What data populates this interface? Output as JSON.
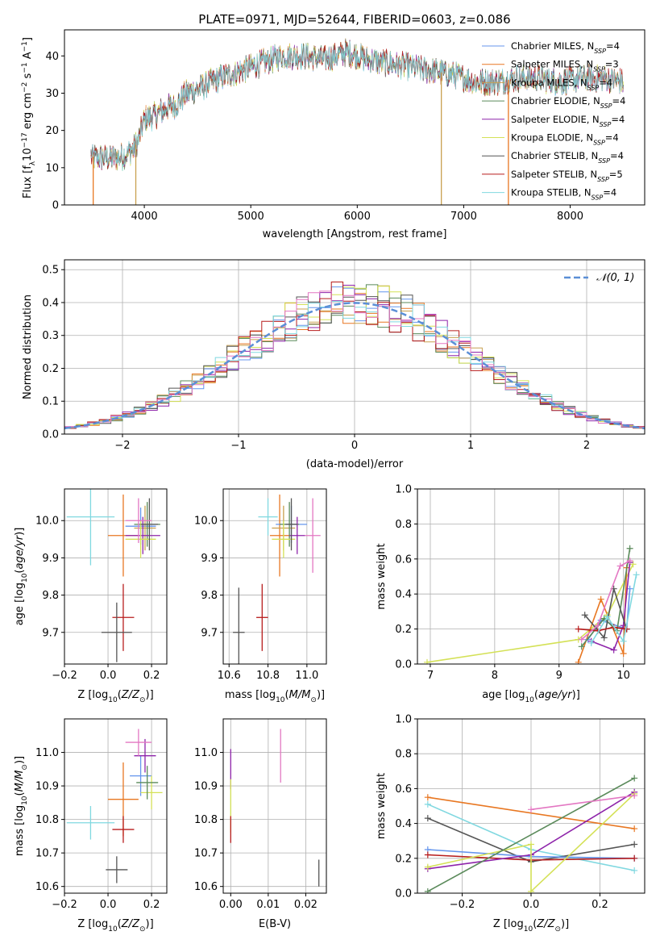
{
  "figure_title": "PLATE=0971, MJD=52644, FIBERID=0603, z=0.086",
  "colors": {
    "c1": "#6495ed",
    "c2": "#e87722",
    "c3": "#c8a050",
    "c4": "#5a8a5a",
    "c5": "#8e24aa",
    "c6": "#d4e157",
    "c7": "#555555",
    "c8": "#b71c1c",
    "c9": "#80d8e0",
    "pink": "#e377c2",
    "gauss": "#5b8fd6",
    "grid": "#b0b0b0"
  },
  "chart_data": [
    {
      "id": "spectrum",
      "type": "line",
      "xlabel": "wavelength [Angstrom, rest frame]",
      "ylabel": "Flux [f_λ10^-17 erg cm^-2 s^-1 A^-1]",
      "xlim": [
        3250,
        8700
      ],
      "ylim": [
        0,
        47
      ],
      "xticks": [
        4000,
        5000,
        6000,
        7000,
        8000
      ],
      "yticks": [
        0,
        10,
        20,
        30,
        40
      ],
      "grid": false,
      "legend_position": "upper-right",
      "continuum": [
        [
          3500,
          13
        ],
        [
          3650,
          12.5
        ],
        [
          3800,
          13
        ],
        [
          3900,
          15
        ],
        [
          3950,
          18
        ],
        [
          4000,
          23
        ],
        [
          4100,
          24
        ],
        [
          4200,
          26
        ],
        [
          4300,
          27
        ],
        [
          4400,
          30
        ],
        [
          4500,
          31
        ],
        [
          4700,
          34
        ],
        [
          4900,
          36
        ],
        [
          5100,
          38
        ],
        [
          5300,
          40
        ],
        [
          5500,
          40
        ],
        [
          5700,
          39
        ],
        [
          5900,
          41
        ],
        [
          6100,
          39
        ],
        [
          6300,
          38
        ],
        [
          6500,
          37
        ],
        [
          6700,
          36
        ],
        [
          6900,
          35
        ],
        [
          7100,
          33
        ],
        [
          7300,
          33
        ],
        [
          7500,
          34
        ],
        [
          7700,
          34
        ],
        [
          7900,
          33
        ],
        [
          8100,
          34
        ],
        [
          8300,
          34
        ],
        [
          8500,
          33
        ]
      ],
      "series": [
        {
          "name": "Chabrier MILES",
          "n_ssp": "4",
          "color": "c1"
        },
        {
          "name": "Salpeter MILES",
          "n_ssp": "3",
          "color": "c2"
        },
        {
          "name": "Kroupa MILES",
          "n_ssp": "4",
          "color": "c3"
        },
        {
          "name": "Chabrier ELODIE",
          "n_ssp": "4",
          "color": "c4"
        },
        {
          "name": "Salpeter ELODIE",
          "n_ssp": "4",
          "color": "c5"
        },
        {
          "name": "Kroupa ELODIE",
          "n_ssp": "4",
          "color": "c6"
        },
        {
          "name": "Chabrier STELIB",
          "n_ssp": "4",
          "color": "c7"
        },
        {
          "name": "Salpeter STELIB",
          "n_ssp": "5",
          "color": "c8"
        },
        {
          "name": "Kroupa STELIB",
          "n_ssp": "4",
          "color": "c9"
        }
      ]
    },
    {
      "id": "histogram",
      "type": "bar",
      "xlabel": "(data-model)/error",
      "ylabel": "Normed distribution",
      "xlim": [
        -2.5,
        2.5
      ],
      "ylim": [
        0,
        0.53
      ],
      "xticks": [
        -2,
        -1,
        0,
        1,
        2
      ],
      "yticks": [
        0.0,
        0.1,
        0.2,
        0.3,
        0.4,
        0.5
      ],
      "grid": true,
      "legend_position": "upper-right",
      "legend_label": "𝒩(0, 1)",
      "bin_width": 0.1
    },
    {
      "id": "age_vs_z",
      "type": "scatter",
      "xlabel": "Z [log10(Z/Z⊙)]",
      "ylabel": "age  [log10(age/yr)]",
      "xlim": [
        -0.2,
        0.27
      ],
      "ylim": [
        9.615,
        10.085
      ],
      "xticks": [
        -0.2,
        0.0,
        0.2
      ],
      "yticks": [
        9.7,
        9.8,
        9.9,
        10.0
      ],
      "grid": true,
      "points": [
        {
          "x": 0.07,
          "y": 9.96,
          "xerr": 0.07,
          "yerr": 0.11,
          "color": "c2"
        },
        {
          "x": 0.15,
          "y": 9.985,
          "xerr": 0.07,
          "yerr": 0.05,
          "color": "c1"
        },
        {
          "x": 0.17,
          "y": 9.98,
          "xerr": 0.05,
          "yerr": 0.06,
          "color": "c3"
        },
        {
          "x": 0.18,
          "y": 9.99,
          "xerr": 0.06,
          "yerr": 0.06,
          "color": "c4"
        },
        {
          "x": 0.16,
          "y": 9.96,
          "xerr": 0.08,
          "yerr": 0.05,
          "color": "c5"
        },
        {
          "x": 0.15,
          "y": 9.95,
          "xerr": 0.07,
          "yerr": 0.05,
          "color": "c6"
        },
        {
          "x": 0.19,
          "y": 9.99,
          "xerr": 0.04,
          "yerr": 0.07,
          "color": "c7"
        },
        {
          "x": -0.08,
          "y": 10.01,
          "xerr": 0.11,
          "yerr": 0.13,
          "color": "c9"
        },
        {
          "x": 0.14,
          "y": 10.0,
          "xerr": 0.06,
          "yerr": 0.06,
          "color": "pink"
        },
        {
          "x": 0.07,
          "y": 9.74,
          "xerr": 0.05,
          "yerr": 0.09,
          "color": "c8"
        },
        {
          "x": 0.04,
          "y": 9.7,
          "xerr": 0.07,
          "yerr": 0.08,
          "color": "c7"
        }
      ]
    },
    {
      "id": "age_vs_mass",
      "type": "scatter",
      "xlabel": "mass [log10(M/M⊙)]",
      "ylabel": "",
      "xlim": [
        10.57,
        11.1
      ],
      "ylim": [
        9.615,
        10.085
      ],
      "xticks": [
        10.6,
        10.8,
        11.0
      ],
      "yticks": [
        9.7,
        9.8,
        9.9,
        10.0
      ],
      "grid": true,
      "points": [
        {
          "x": 10.86,
          "y": 9.96,
          "xerr": 0.05,
          "yerr": 0.11,
          "color": "c2"
        },
        {
          "x": 10.92,
          "y": 9.99,
          "xerr": 0.08,
          "yerr": 0.05,
          "color": "c1"
        },
        {
          "x": 10.88,
          "y": 9.98,
          "xerr": 0.06,
          "yerr": 0.06,
          "color": "c3"
        },
        {
          "x": 10.91,
          "y": 9.99,
          "xerr": 0.05,
          "yerr": 0.06,
          "color": "c4"
        },
        {
          "x": 10.95,
          "y": 9.96,
          "xerr": 0.04,
          "yerr": 0.05,
          "color": "c5"
        },
        {
          "x": 10.88,
          "y": 9.95,
          "xerr": 0.06,
          "yerr": 0.05,
          "color": "c6"
        },
        {
          "x": 10.92,
          "y": 9.99,
          "xerr": 0.03,
          "yerr": 0.07,
          "color": "c7"
        },
        {
          "x": 10.8,
          "y": 10.01,
          "xerr": 0.05,
          "yerr": 0.05,
          "color": "c9"
        },
        {
          "x": 11.03,
          "y": 9.96,
          "xerr": 0.04,
          "yerr": 0.1,
          "color": "pink"
        },
        {
          "x": 10.77,
          "y": 9.74,
          "xerr": 0.03,
          "yerr": 0.09,
          "color": "c8"
        },
        {
          "x": 10.65,
          "y": 9.7,
          "xerr": 0.03,
          "yerr": 0.12,
          "color": "c7"
        }
      ]
    },
    {
      "id": "weight_vs_age",
      "type": "line",
      "xlabel": "age  [log10(age/yr)]",
      "ylabel": "mass weight",
      "xlim": [
        6.8,
        10.33
      ],
      "ylim": [
        0,
        1.0
      ],
      "xticks": [
        7,
        8,
        9,
        10
      ],
      "yticks": [
        0.0,
        0.2,
        0.4,
        0.6,
        0.8,
        1.0
      ],
      "grid": true,
      "series": [
        {
          "color": "c6",
          "x": [
            6.95,
            9.3,
            9.75,
            10.15
          ],
          "y": [
            0.01,
            0.14,
            0.28,
            0.57
          ]
        },
        {
          "color": "c2",
          "x": [
            9.3,
            9.65,
            10.0,
            10.05
          ],
          "y": [
            0.01,
            0.37,
            0.06,
            0.55
          ]
        },
        {
          "color": "c1",
          "x": [
            9.45,
            9.65,
            10.05,
            10.1
          ],
          "y": [
            0.14,
            0.25,
            0.2,
            0.43
          ]
        },
        {
          "color": "c4",
          "x": [
            9.35,
            9.7,
            9.9,
            10.1
          ],
          "y": [
            0.1,
            0.26,
            0.19,
            0.66
          ]
        },
        {
          "color": "c5",
          "x": [
            9.5,
            9.85,
            10.0,
            10.1
          ],
          "y": [
            0.13,
            0.08,
            0.22,
            0.58
          ]
        },
        {
          "color": "c7",
          "x": [
            9.4,
            9.7,
            9.85,
            10.05
          ],
          "y": [
            0.28,
            0.15,
            0.43,
            0.2
          ]
        },
        {
          "color": "c8",
          "x": [
            9.3,
            9.6,
            9.85,
            10.05
          ],
          "y": [
            0.2,
            0.19,
            0.21,
            0.2
          ]
        },
        {
          "color": "c9",
          "x": [
            9.5,
            9.75,
            10.0,
            10.2
          ],
          "y": [
            0.12,
            0.27,
            0.13,
            0.51
          ]
        },
        {
          "color": "pink",
          "x": [
            9.35,
            9.6,
            9.95,
            10.1
          ],
          "y": [
            0.14,
            0.22,
            0.56,
            0.59
          ]
        }
      ]
    },
    {
      "id": "mass_vs_z",
      "type": "scatter",
      "xlabel": "Z [log10(Z/Z⊙)]",
      "ylabel": "mass [log10(M/M⊙)]",
      "xlim": [
        -0.2,
        0.27
      ],
      "ylim": [
        10.58,
        11.1
      ],
      "xticks": [
        -0.2,
        0.0,
        0.2
      ],
      "yticks": [
        10.6,
        10.7,
        10.8,
        10.9,
        11.0
      ],
      "grid": true,
      "points": [
        {
          "x": 0.07,
          "y": 10.86,
          "xerr": 0.07,
          "yerr": 0.11,
          "color": "c2"
        },
        {
          "x": 0.15,
          "y": 10.93,
          "xerr": 0.05,
          "yerr": 0.06,
          "color": "c1"
        },
        {
          "x": 0.2,
          "y": 10.88,
          "xerr": 0.05,
          "yerr": 0.05,
          "color": "c6"
        },
        {
          "x": 0.18,
          "y": 10.91,
          "xerr": 0.05,
          "yerr": 0.05,
          "color": "c4"
        },
        {
          "x": 0.17,
          "y": 10.99,
          "xerr": 0.05,
          "yerr": 0.05,
          "color": "c5"
        },
        {
          "x": 0.14,
          "y": 11.03,
          "xerr": 0.06,
          "yerr": 0.04,
          "color": "pink"
        },
        {
          "x": -0.08,
          "y": 10.79,
          "xerr": 0.11,
          "yerr": 0.05,
          "color": "c9"
        },
        {
          "x": 0.07,
          "y": 10.77,
          "xerr": 0.05,
          "yerr": 0.04,
          "color": "c8"
        },
        {
          "x": 0.04,
          "y": 10.65,
          "xerr": 0.05,
          "yerr": 0.04,
          "color": "c7"
        }
      ]
    },
    {
      "id": "mass_vs_ebv",
      "type": "scatter",
      "xlabel": "E(B-V)",
      "ylabel": "",
      "xlim": [
        -0.002,
        0.0255
      ],
      "ylim": [
        10.58,
        11.1
      ],
      "xticks": [
        0.0,
        0.01,
        0.02
      ],
      "yticks": [
        10.6,
        10.7,
        10.8,
        10.9,
        11.0
      ],
      "grid": true,
      "points": [
        {
          "x": 0.0,
          "y": 10.95,
          "xerr": 0,
          "yerr": 0.06,
          "color": "c5"
        },
        {
          "x": 0.0,
          "y": 10.84,
          "xerr": 0,
          "yerr": 0.08,
          "color": "c6"
        },
        {
          "x": 0.0,
          "y": 10.77,
          "xerr": 0,
          "yerr": 0.04,
          "color": "c8"
        },
        {
          "x": 0.0133,
          "y": 10.99,
          "xerr": 0,
          "yerr": 0.08,
          "color": "pink"
        },
        {
          "x": 0.0235,
          "y": 10.64,
          "xerr": 0,
          "yerr": 0.04,
          "color": "c7"
        }
      ]
    },
    {
      "id": "weight_vs_z",
      "type": "line",
      "xlabel": "Z [log10(Z/Z⊙)]",
      "ylabel": "mass weight",
      "xlim": [
        -0.33,
        0.33
      ],
      "ylim": [
        0,
        1.0
      ],
      "xticks": [
        -0.2,
        0.0,
        0.2
      ],
      "yticks": [
        0.0,
        0.2,
        0.4,
        0.6,
        0.8,
        1.0
      ],
      "grid": true,
      "series": [
        {
          "color": "c2",
          "x": [
            -0.3,
            0.3
          ],
          "y": [
            0.55,
            0.37
          ]
        },
        {
          "color": "c9",
          "x": [
            -0.3,
            0.0,
            0.3
          ],
          "y": [
            0.51,
            0.25,
            0.13
          ]
        },
        {
          "color": "c7",
          "x": [
            -0.3,
            0.0,
            0.3
          ],
          "y": [
            0.43,
            0.18,
            0.28
          ]
        },
        {
          "color": "c1",
          "x": [
            -0.3,
            0.0,
            0.3
          ],
          "y": [
            0.25,
            0.21,
            0.2
          ]
        },
        {
          "color": "c8",
          "x": [
            -0.3,
            0.0,
            0.3
          ],
          "y": [
            0.22,
            0.19,
            0.2
          ]
        },
        {
          "color": "c5",
          "x": [
            -0.3,
            0.0,
            0.3
          ],
          "y": [
            0.14,
            0.22,
            0.58
          ]
        },
        {
          "color": "c6",
          "x": [
            -0.3,
            0.0,
            0.0,
            0.3
          ],
          "y": [
            0.15,
            0.28,
            0.01,
            0.57
          ]
        },
        {
          "color": "c4",
          "x": [
            -0.3,
            0.3
          ],
          "y": [
            0.01,
            0.66
          ]
        },
        {
          "color": "pink",
          "x": [
            0.0,
            0.3
          ],
          "y": [
            0.48,
            0.56
          ]
        }
      ]
    }
  ]
}
